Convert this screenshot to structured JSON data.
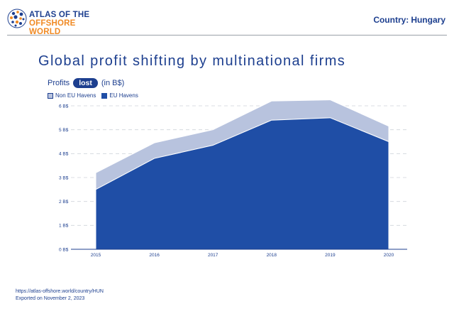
{
  "header": {
    "logo_line1": "ATLAS OF THE",
    "logo_line2": "OFFSHORE WORLD",
    "country_prefix": "Country:",
    "country_name": "Hungary"
  },
  "title": "Global profit shifting by multinational firms",
  "subtitle": {
    "prefix": "Profits",
    "pill": "lost",
    "suffix": "(in B$)"
  },
  "colors": {
    "eu_havens": "#1f4ea6",
    "non_eu_havens": "#b8c3de",
    "text": "#1d3f8f",
    "accent": "#f08a24"
  },
  "chart_data": {
    "type": "area",
    "stacked": true,
    "x": [
      "2015",
      "2016",
      "2017",
      "2018",
      "2019",
      "2020"
    ],
    "y_ticks": [
      "0 B$",
      "1 B$",
      "2 B$",
      "3 B$",
      "4 B$",
      "5 B$",
      "6 B$"
    ],
    "ylim": [
      0,
      6
    ],
    "grid": true,
    "legend_position": "top-left",
    "series": [
      {
        "name": "Non EU Havens",
        "values": [
          0.7,
          0.65,
          0.65,
          0.8,
          0.75,
          0.65
        ]
      },
      {
        "name": "EU Havens",
        "values": [
          2.5,
          3.8,
          4.35,
          5.4,
          5.5,
          4.5
        ]
      }
    ]
  },
  "footer": {
    "url": "https://atlas-offshore.world/country/HUN",
    "exported": "Exported on November 2, 2023"
  }
}
